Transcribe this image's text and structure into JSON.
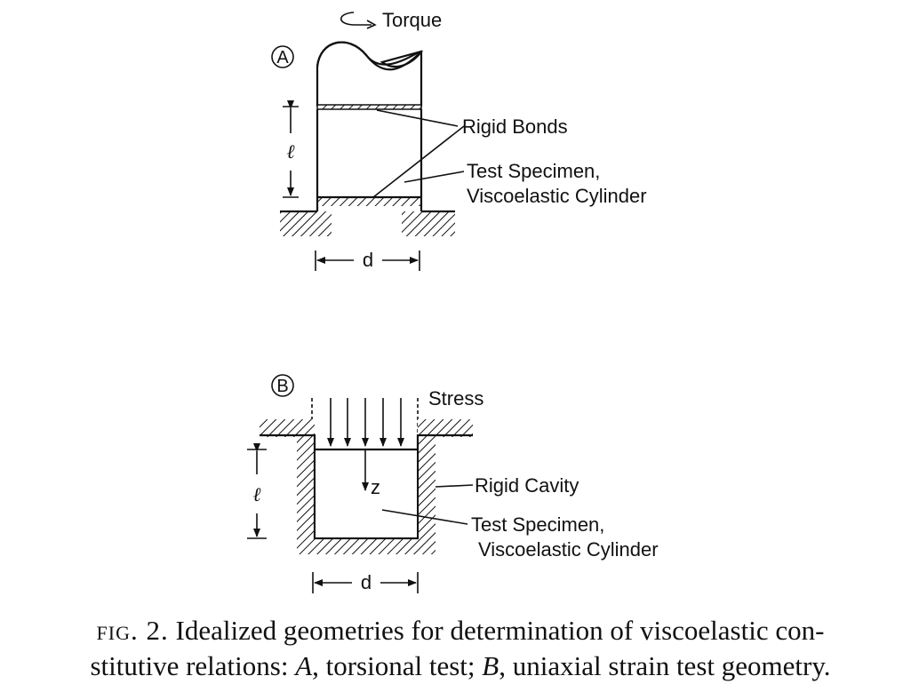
{
  "panel_a": {
    "marker": "A",
    "torque_label": "Torque",
    "rigid_bonds_label": "Rigid Bonds",
    "specimen_label_line1": "Test Specimen,",
    "specimen_label_line2": "Viscoelastic Cylinder",
    "length_label": "ℓ",
    "diameter_label": "d"
  },
  "panel_b": {
    "marker": "B",
    "stress_label": "Stress",
    "z_label": "z",
    "cavity_label": "Rigid Cavity",
    "specimen_label_line1": "Test Specimen,",
    "specimen_label_line2": "Viscoelastic Cylinder",
    "length_label": "ℓ",
    "diameter_label": "d"
  },
  "caption": {
    "prefix": "fig. 2.",
    "text_1": "Idealized geometries for determination of viscoelastic con-",
    "text_2a": "stitutive relations: ",
    "a_ref": "A",
    "text_2b": ", torsional test; ",
    "b_ref": "B",
    "text_2c": ", uniaxial strain test geometry."
  }
}
